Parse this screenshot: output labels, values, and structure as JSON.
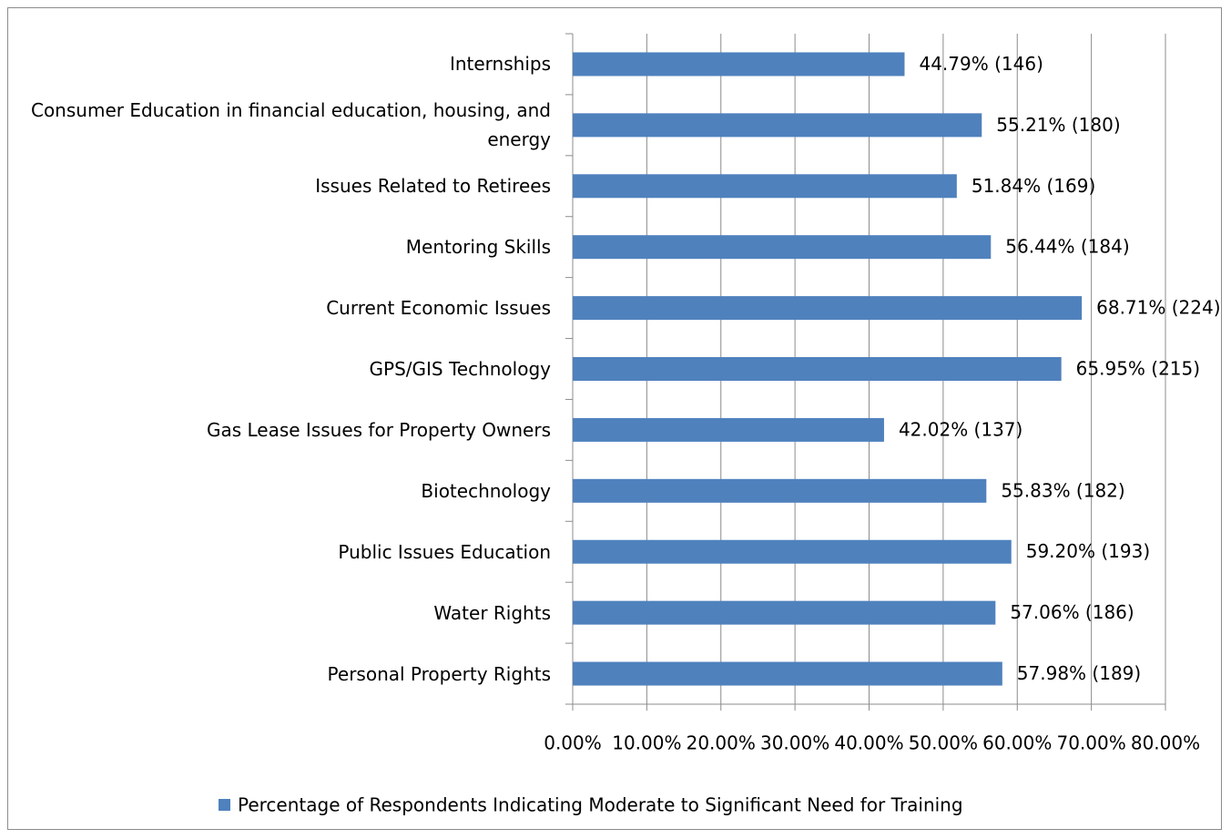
{
  "chart_data": {
    "type": "bar",
    "orientation": "horizontal",
    "categories": [
      "Internships",
      "Consumer Education in financial education, housing, and energy",
      "Issues Related to Retirees",
      "Mentoring Skills",
      "Current Economic Issues",
      "GPS/GIS Technology",
      "Gas Lease Issues for Property Owners",
      "Biotechnology",
      "Public Issues Education",
      "Water Rights",
      "Personal Property Rights"
    ],
    "series": [
      {
        "name": "Percentage of Respondents Indicating Moderate to Significant Need for Training",
        "color": "#4f81bd",
        "values": [
          44.79,
          55.21,
          51.84,
          56.44,
          68.71,
          65.95,
          42.02,
          55.83,
          59.2,
          57.06,
          57.98
        ],
        "value_labels": [
          "44.79% (146)",
          "55.21% (180)",
          "51.84% (169)",
          "56.44% (184)",
          "68.71% (224)",
          "65.95% (215)",
          "42.02% (137)",
          "55.83% (182)",
          "59.20% (193)",
          "57.06% (186)",
          "57.98% (189)"
        ]
      }
    ],
    "xlim": [
      0,
      80
    ],
    "xticks": [
      {
        "value": 0,
        "label": "0.00%"
      },
      {
        "value": 10,
        "label": "10.00%"
      },
      {
        "value": 20,
        "label": "20.00%"
      },
      {
        "value": 30,
        "label": "30.00%"
      },
      {
        "value": 40,
        "label": "40.00%"
      },
      {
        "value": 50,
        "label": "50.00%"
      },
      {
        "value": 60,
        "label": "60.00%"
      },
      {
        "value": 70,
        "label": "70.00%"
      },
      {
        "value": 80,
        "label": "80.00%"
      }
    ],
    "grid": true,
    "legend": "bottom"
  }
}
